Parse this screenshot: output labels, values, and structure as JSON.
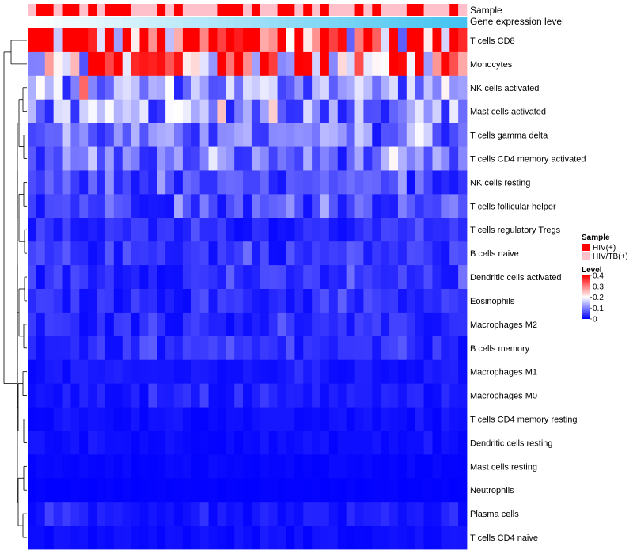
{
  "chart_data": {
    "type": "heatmap",
    "title": "",
    "annotation_rows": {
      "sample_label": "Sample",
      "gene_label": "Gene expression level"
    },
    "samples": [
      "P",
      "R",
      "R",
      "P",
      "R",
      "R",
      "P",
      "R",
      "P",
      "R",
      "R",
      "R",
      "P",
      "P",
      "P",
      "R",
      "P",
      "R",
      "P",
      "P",
      "P",
      "P",
      "R",
      "R",
      "R",
      "P",
      "R",
      "P",
      "P",
      "R",
      "R",
      "P",
      "R",
      "P",
      "R",
      "P",
      "P",
      "P",
      "R",
      "P",
      "R",
      "P",
      "P",
      "P",
      "R",
      "R",
      "P",
      "P",
      "P",
      "R",
      "P"
    ],
    "rows": [
      "T cells CD8",
      "Monocytes",
      "NK cells activated",
      "Mast cells activated",
      "T cells gamma delta",
      "T cells CD4 memory activated",
      "NK cells resting",
      "T cells follicular helper",
      "T cells regulatory  Tregs",
      "B cells naive",
      "Dendritic cells activated",
      "Eosinophils",
      "Macrophages M2",
      "B cells memory",
      "Macrophages M1",
      "Macrophages M0",
      "T cells CD4 memory resting",
      "Dendritic cells resting",
      "Mast cells resting",
      "Neutrophils",
      "Plasma cells",
      "T cells CD4 naive"
    ],
    "n_columns": 51,
    "row_base_level": [
      0.33,
      0.3,
      0.12,
      0.11,
      0.08,
      0.08,
      0.05,
      0.06,
      0.03,
      0.04,
      0.035,
      0.03,
      0.03,
      0.03,
      0.015,
      0.02,
      0.01,
      0.01,
      0.005,
      0.002,
      0.02,
      0.01
    ],
    "color_scale": {
      "min": 0,
      "max": 0.4,
      "low": "#0000FF",
      "mid": "#FFFFFF",
      "high": "#FF0000",
      "mid_value": 0.2
    },
    "legend": {
      "sample_title": "Sample",
      "sample_entries": [
        {
          "label": "HIV(+)",
          "color": "#FF0000"
        },
        {
          "label": "HIV/TB(+)",
          "color": "#FFC0CB"
        }
      ],
      "level_title": "Level",
      "level_ticks": [
        "0.4",
        "0.3",
        "0.2",
        "0.1",
        "0"
      ],
      "level_tick_values": [
        0.4,
        0.3,
        0.2,
        0.1,
        0
      ]
    },
    "colors": {
      "hiv": "#FF0000",
      "hivtb": "#FFC0CB",
      "gene_low": "#FFFFFF",
      "gene_high": "#44C3F0",
      "dendro": "#000000"
    }
  }
}
